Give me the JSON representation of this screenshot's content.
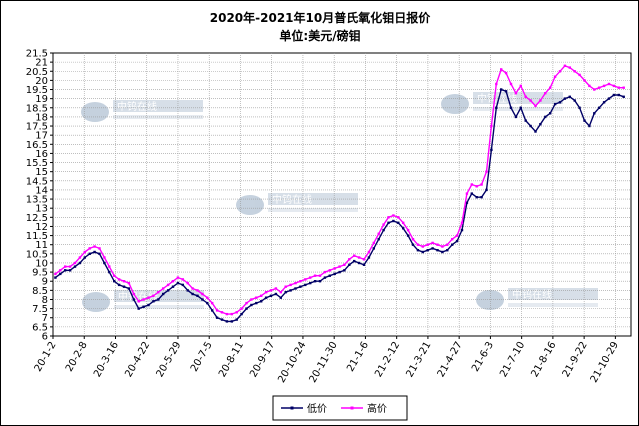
{
  "chart_data": {
    "type": "line",
    "title": "2020年-2021年10月普氏氧化钼日报价",
    "subtitle": "单位:美元/磅钼",
    "watermark_text": "中钨在线",
    "ylim": [
      6,
      21.5
    ],
    "grid": true,
    "legend_position": "bottom",
    "y_ticks": [
      "6",
      "6.5",
      "7",
      "7.5",
      "8",
      "8.5",
      "9",
      "9.5",
      "10",
      "10.5",
      "11",
      "11.5",
      "12",
      "12.5",
      "13",
      "13.5",
      "14",
      "14.5",
      "15",
      "15.5",
      "16",
      "16.5",
      "17",
      "17.5",
      "18",
      "18.5",
      "19",
      "19.5",
      "20",
      "20.5",
      "21",
      "21.5"
    ],
    "x_ticks": [
      "20-1-2",
      "20-2-8",
      "20-3-16",
      "20-4-22",
      "20-5-29",
      "20-7-5",
      "20-8-11",
      "20-9-17",
      "20-10-24",
      "20-11-30",
      "21-1-6",
      "21-2-12",
      "21-3-21",
      "21-4-27",
      "21-6-3",
      "21-7-10",
      "21-8-16",
      "21-9-22",
      "21-10-29"
    ],
    "series": [
      {
        "name": "低价",
        "color": "#000066",
        "values": [
          9.2,
          9.4,
          9.6,
          9.6,
          9.8,
          10.0,
          10.3,
          10.5,
          10.6,
          10.5,
          10.0,
          9.5,
          9.0,
          8.8,
          8.7,
          8.6,
          8.0,
          7.5,
          7.6,
          7.7,
          7.9,
          8.0,
          8.3,
          8.5,
          8.7,
          8.9,
          8.8,
          8.5,
          8.3,
          8.2,
          8.0,
          7.8,
          7.4,
          7.0,
          6.9,
          6.8,
          6.8,
          6.9,
          7.2,
          7.5,
          7.7,
          7.8,
          7.9,
          8.1,
          8.2,
          8.3,
          8.1,
          8.4,
          8.5,
          8.6,
          8.7,
          8.8,
          8.9,
          9.0,
          9.0,
          9.2,
          9.3,
          9.4,
          9.5,
          9.6,
          9.9,
          10.1,
          10.0,
          9.9,
          10.3,
          10.8,
          11.3,
          11.8,
          12.2,
          12.3,
          12.2,
          11.9,
          11.5,
          11.0,
          10.7,
          10.6,
          10.7,
          10.8,
          10.7,
          10.6,
          10.7,
          11.0,
          11.2,
          11.8,
          13.3,
          13.8,
          13.6,
          13.6,
          14.0,
          16.2,
          18.5,
          19.5,
          19.4,
          18.5,
          18.0,
          18.5,
          17.8,
          17.5,
          17.2,
          17.6,
          18.0,
          18.2,
          18.7,
          18.8,
          19.0,
          19.1,
          18.9,
          18.5,
          17.8,
          17.5,
          18.2,
          18.5,
          18.8,
          19.0,
          19.2,
          19.2,
          19.1
        ]
      },
      {
        "name": "高价",
        "color": "#ff00ff",
        "values": [
          9.4,
          9.6,
          9.8,
          9.8,
          10.0,
          10.3,
          10.6,
          10.8,
          10.9,
          10.8,
          10.3,
          9.8,
          9.3,
          9.1,
          9.0,
          8.9,
          8.3,
          7.9,
          8.0,
          8.1,
          8.2,
          8.4,
          8.6,
          8.8,
          9.0,
          9.2,
          9.1,
          8.9,
          8.6,
          8.5,
          8.3,
          8.1,
          7.8,
          7.4,
          7.3,
          7.2,
          7.2,
          7.3,
          7.5,
          7.8,
          8.0,
          8.1,
          8.2,
          8.4,
          8.5,
          8.6,
          8.4,
          8.7,
          8.8,
          8.9,
          9.0,
          9.1,
          9.2,
          9.3,
          9.3,
          9.5,
          9.6,
          9.7,
          9.8,
          9.9,
          10.2,
          10.4,
          10.3,
          10.2,
          10.6,
          11.1,
          11.6,
          12.1,
          12.5,
          12.6,
          12.5,
          12.2,
          11.8,
          11.3,
          11.0,
          10.9,
          11.0,
          11.1,
          11.0,
          10.9,
          11.0,
          11.3,
          11.5,
          12.2,
          13.8,
          14.3,
          14.2,
          14.3,
          15.0,
          17.5,
          19.8,
          20.6,
          20.4,
          19.8,
          19.3,
          19.7,
          19.1,
          18.9,
          18.6,
          18.9,
          19.3,
          19.6,
          20.2,
          20.5,
          20.8,
          20.7,
          20.5,
          20.3,
          20.0,
          19.7,
          19.5,
          19.6,
          19.7,
          19.8,
          19.7,
          19.6,
          19.6
        ]
      }
    ]
  }
}
